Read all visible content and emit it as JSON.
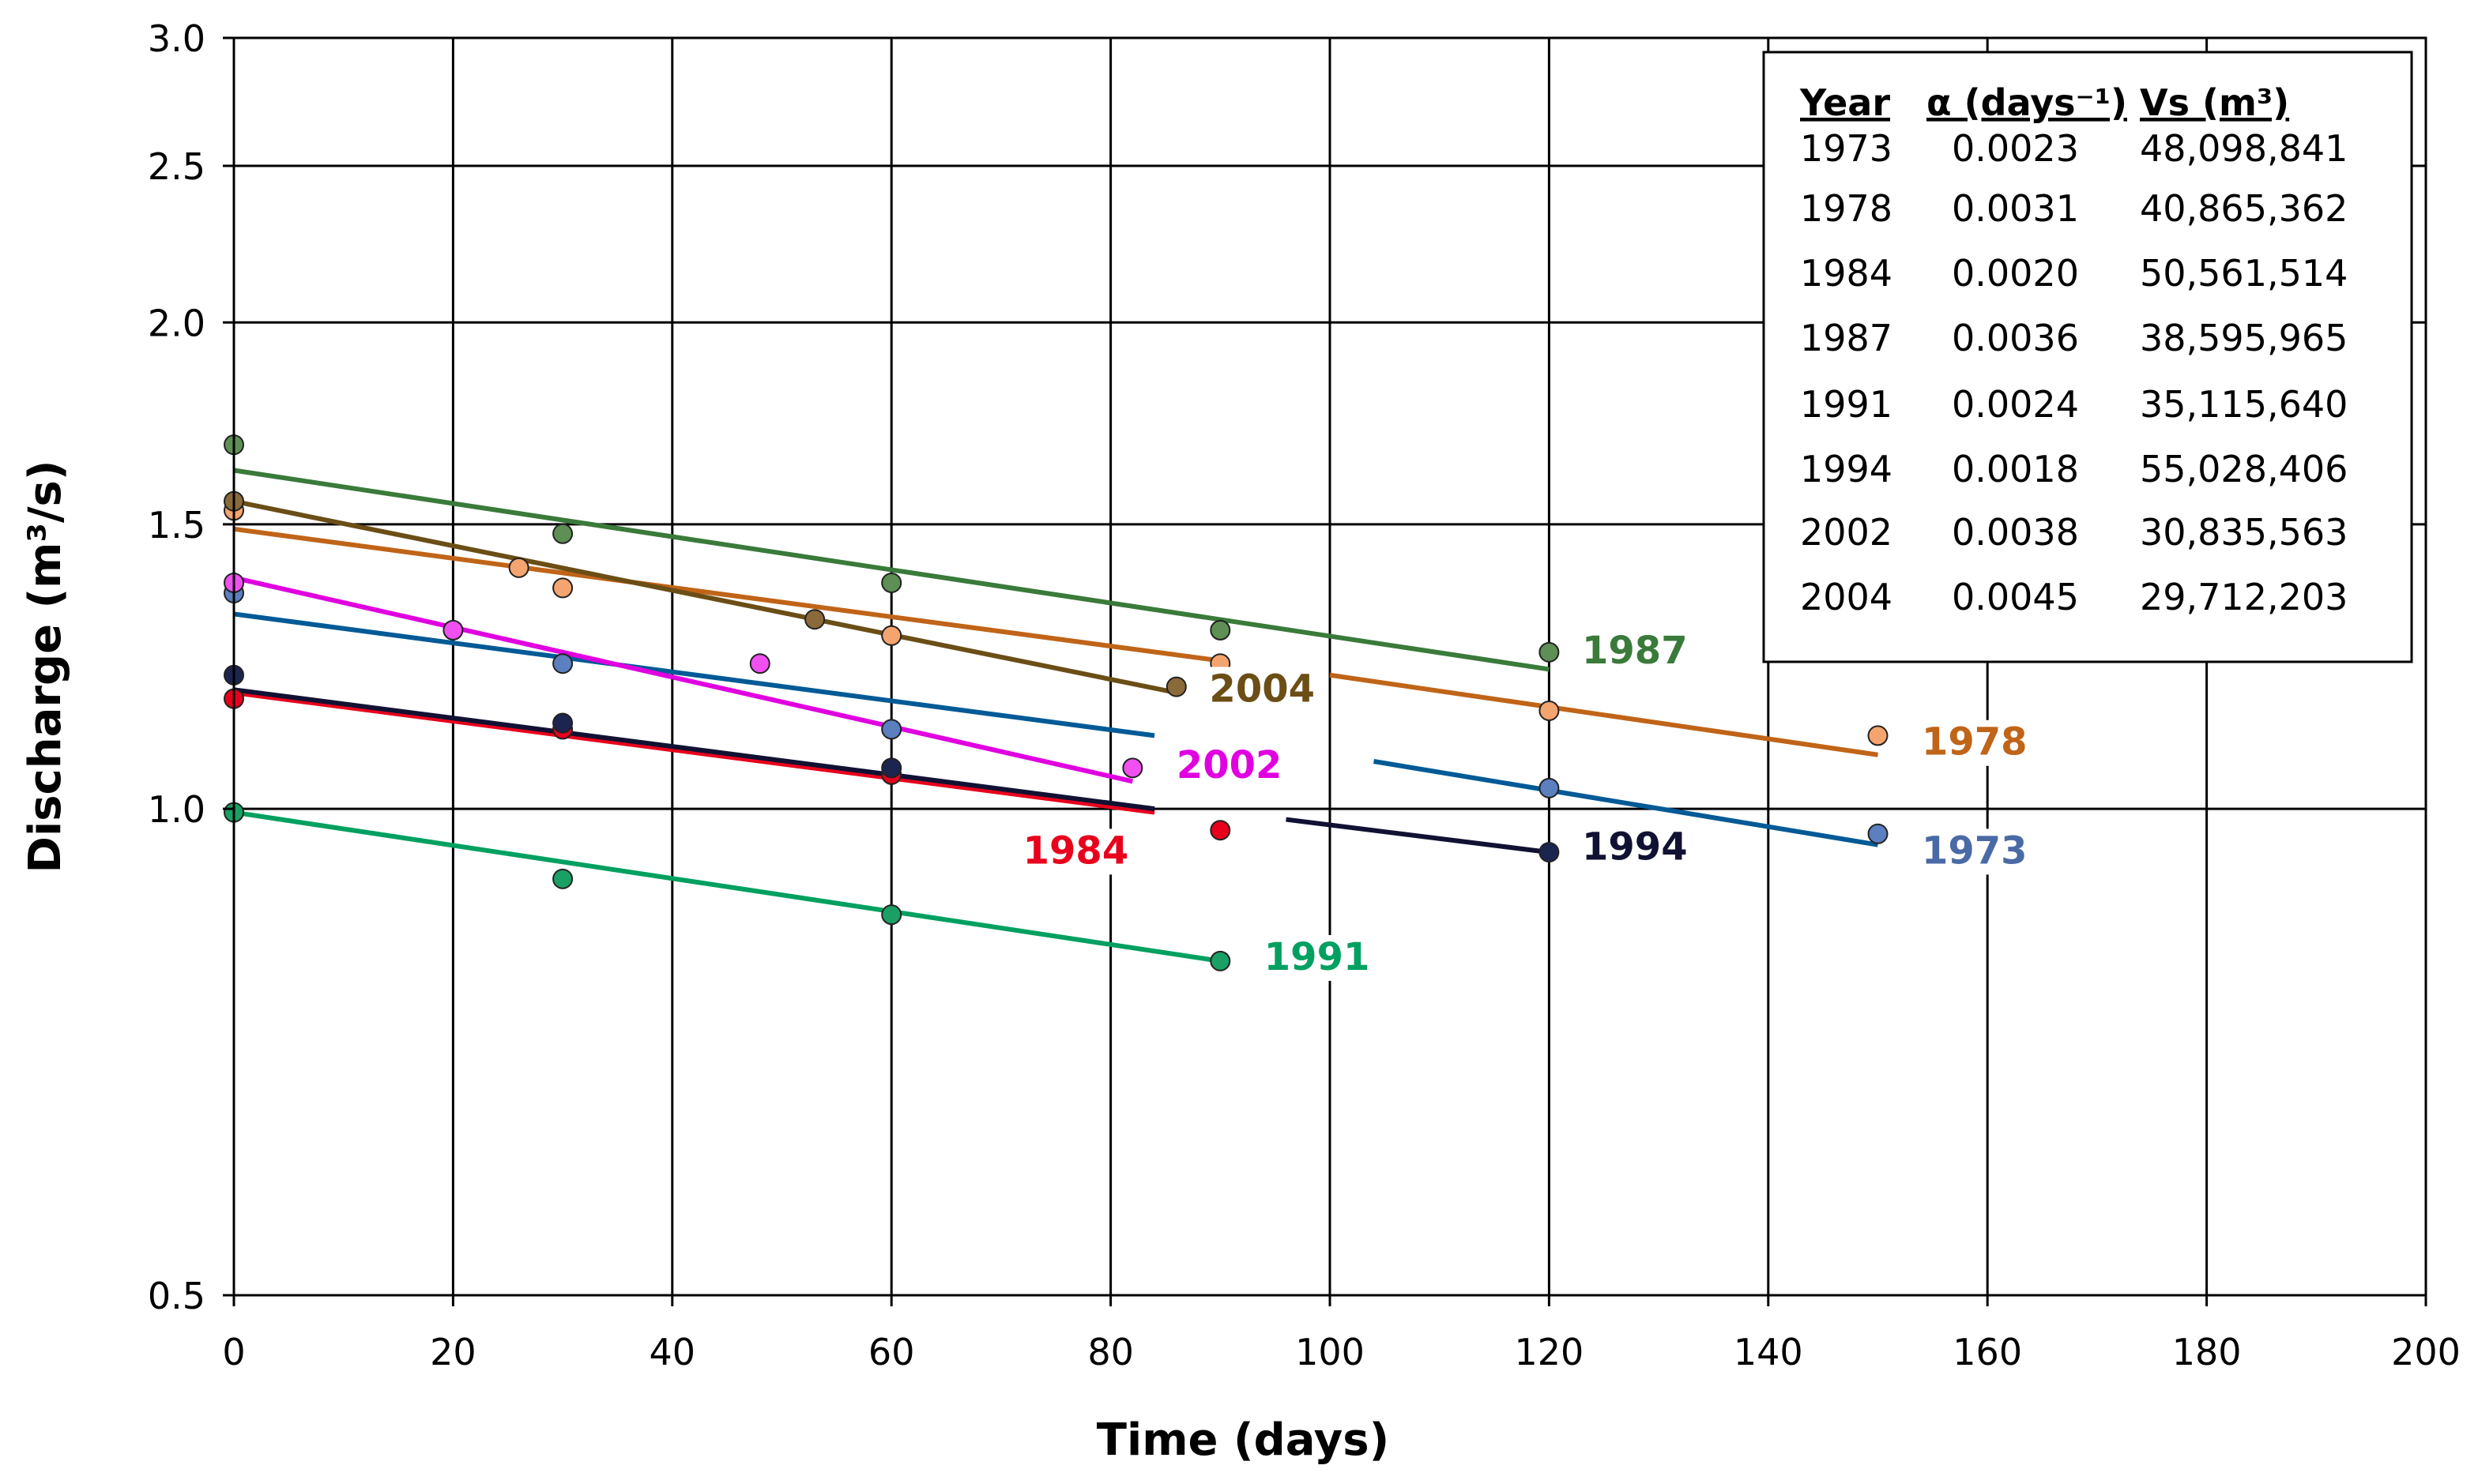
{
  "chart_data": {
    "type": "scatter",
    "title": "",
    "xlabel": "Time (days)",
    "ylabel": "Discharge (m³/s)",
    "y_scale": "log",
    "xlim": [
      0,
      200
    ],
    "ylim": [
      0.5,
      3.0
    ],
    "x_ticks": [
      0,
      20,
      40,
      60,
      80,
      100,
      120,
      140,
      160,
      180,
      200
    ],
    "y_ticks": [
      0.5,
      1.0,
      1.5,
      2.0,
      2.5,
      3.0
    ],
    "y_tick_labels": [
      "0.5",
      "1.0",
      "1.5",
      "2.0",
      "2.5",
      "3.0"
    ],
    "grid": true,
    "series": [
      {
        "name": "1973",
        "color": "#005a96",
        "marker_color": "#5b7fbf",
        "points": [
          [
            0,
            1.36
          ],
          [
            30,
            1.23
          ],
          [
            60,
            1.12
          ],
          [
            120,
            1.03
          ],
          [
            150,
            0.965
          ]
        ],
        "fit": [
          [
            0,
            1.32
          ],
          [
            84,
            1.11
          ]
        ],
        "fit2": [
          [
            104,
            1.07
          ],
          [
            150,
            0.95
          ]
        ]
      },
      {
        "name": "1978",
        "color": "#c06418",
        "marker_color": "#f4a46e",
        "points": [
          [
            0,
            1.53
          ],
          [
            26,
            1.41
          ],
          [
            30,
            1.37
          ],
          [
            60,
            1.28
          ],
          [
            90,
            1.23
          ],
          [
            120,
            1.15
          ],
          [
            150,
            1.11
          ]
        ],
        "fit": [
          [
            0,
            1.49
          ],
          [
            90,
            1.235
          ]
        ],
        "fit2": [
          [
            100,
            1.21
          ],
          [
            150,
            1.08
          ]
        ]
      },
      {
        "name": "1984",
        "color": "#e8001c",
        "marker_color": "#e8001c",
        "points": [
          [
            0,
            1.17
          ],
          [
            30,
            1.12
          ],
          [
            60,
            1.05
          ],
          [
            90,
            0.97
          ]
        ],
        "fit": [
          [
            0,
            1.18
          ],
          [
            84,
            0.995
          ]
        ]
      },
      {
        "name": "1987",
        "color": "#3a7a3a",
        "marker_color": "#5e8f55",
        "points": [
          [
            0,
            1.68
          ],
          [
            30,
            1.48
          ],
          [
            60,
            1.38
          ],
          [
            90,
            1.29
          ],
          [
            120,
            1.25
          ]
        ],
        "fit": [
          [
            0,
            1.62
          ],
          [
            120,
            1.22
          ]
        ]
      },
      {
        "name": "1991",
        "color": "#00a060",
        "marker_color": "#1aa064",
        "points": [
          [
            0,
            0.995
          ],
          [
            30,
            0.905
          ],
          [
            60,
            0.86
          ],
          [
            90,
            0.805
          ]
        ],
        "fit": [
          [
            0,
            0.995
          ],
          [
            90,
            0.805
          ]
        ]
      },
      {
        "name": "1994",
        "color": "#111133",
        "marker_color": "#1c2450",
        "points": [
          [
            0,
            1.21
          ],
          [
            30,
            1.13
          ],
          [
            60,
            1.06
          ],
          [
            120,
            0.94
          ]
        ],
        "fit": [
          [
            0,
            1.185
          ],
          [
            84,
            1.0
          ]
        ],
        "fit2": [
          [
            96,
            0.985
          ],
          [
            120,
            0.94
          ]
        ]
      },
      {
        "name": "2002",
        "color": "#e000e0",
        "marker_color": "#f050f0",
        "points": [
          [
            0,
            1.38
          ],
          [
            20,
            1.29
          ],
          [
            48,
            1.23
          ],
          [
            82,
            1.06
          ]
        ],
        "fit": [
          [
            0,
            1.39
          ],
          [
            82,
            1.04
          ]
        ]
      },
      {
        "name": "2004",
        "color": "#6b4e16",
        "marker_color": "#8b6a3a",
        "points": [
          [
            0,
            1.55
          ],
          [
            53,
            1.31
          ],
          [
            86,
            1.19
          ]
        ],
        "fit": [
          [
            0,
            1.55
          ],
          [
            86,
            1.18
          ]
        ]
      }
    ],
    "series_labels": [
      {
        "name": "1987",
        "x": 123,
        "y": 1.23,
        "color": "#3a7a3a"
      },
      {
        "name": "2004",
        "x": 89,
        "y": 1.165,
        "color": "#6b4e16"
      },
      {
        "name": "1978",
        "x": 154,
        "y": 1.08,
        "color": "#c06418"
      },
      {
        "name": "2002",
        "x": 86,
        "y": 1.045,
        "color": "#e000e0"
      },
      {
        "name": "1994",
        "x": 123,
        "y": 0.93,
        "color": "#111133"
      },
      {
        "name": "1973",
        "x": 154,
        "y": 0.925,
        "color": "#4a6aa5"
      },
      {
        "name": "1984",
        "x": 72,
        "y": 0.925,
        "color": "#e8001c"
      },
      {
        "name": "1991",
        "x": 94,
        "y": 0.795,
        "color": "#00a060"
      }
    ],
    "legend_table": {
      "placement": "top-right",
      "headers": [
        "Year",
        "α (days⁻¹)",
        "Vs (m³)"
      ],
      "rows": [
        [
          "1973",
          "0.0023",
          "48,098,841"
        ],
        [
          "1978",
          "0.0031",
          "40,865,362"
        ],
        [
          "1984",
          "0.0020",
          "50,561,514"
        ],
        [
          "1987",
          "0.0036",
          "38,595,965"
        ],
        [
          "1991",
          "0.0024",
          "35,115,640"
        ],
        [
          "1994",
          "0.0018",
          "55,028,406"
        ],
        [
          "2002",
          "0.0038",
          "30,835,563"
        ],
        [
          "2004",
          "0.0045",
          "29,712,203"
        ]
      ]
    }
  }
}
